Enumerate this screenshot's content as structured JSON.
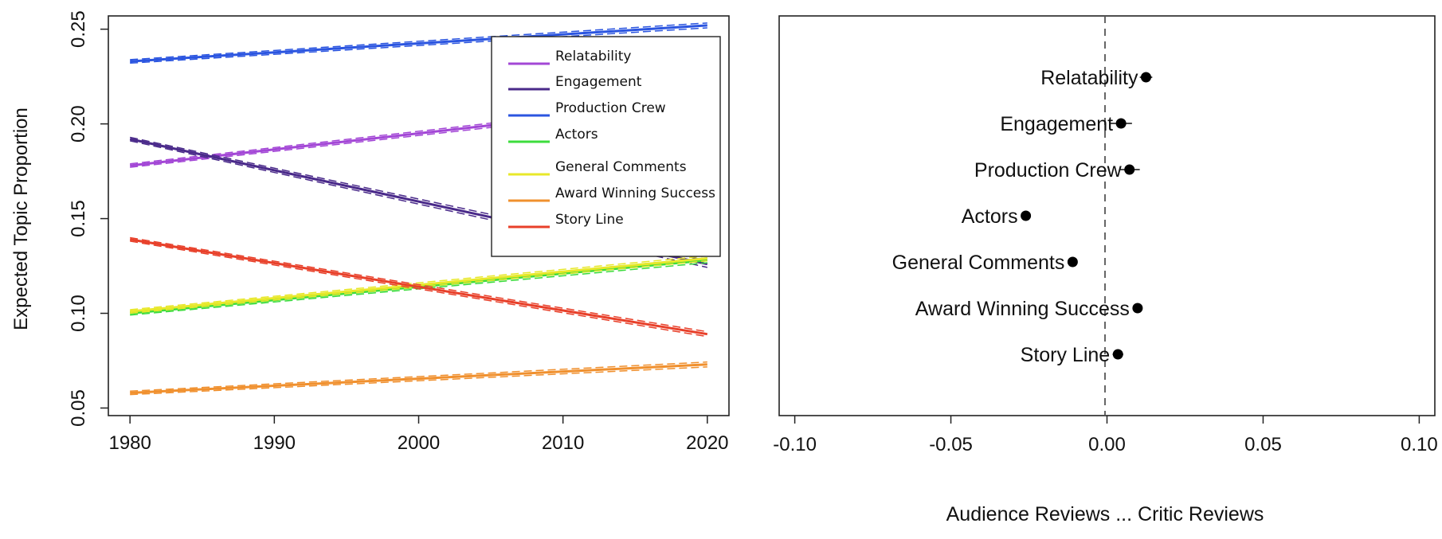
{
  "chart_data": [
    {
      "type": "line",
      "title": "",
      "xlabel": "",
      "ylabel": "Expected Topic Proportion",
      "xlim": [
        1978.5,
        2021.5
      ],
      "ylim": [
        0.046,
        0.257
      ],
      "xticks": [
        "1980",
        "1990",
        "2000",
        "2010",
        "2020"
      ],
      "yticks": [
        "0.05",
        "0.10",
        "0.15",
        "0.20",
        "0.25"
      ],
      "grid": false,
      "legend": "top-right",
      "confidence_bands": "dashed",
      "series": [
        {
          "name": "Relatability",
          "color": "#a347d6",
          "x": [
            1980,
            2020
          ],
          "y": [
            0.178,
            0.212
          ]
        },
        {
          "name": "Engagement",
          "color": "#4a2a8a",
          "x": [
            1980,
            2020
          ],
          "y": [
            0.192,
            0.126
          ]
        },
        {
          "name": "Production Crew",
          "color": "#2b55e0",
          "x": [
            1980,
            2020
          ],
          "y": [
            0.233,
            0.252
          ]
        },
        {
          "name": "Actors",
          "color": "#3ddc3d",
          "x": [
            1980,
            2020
          ],
          "y": [
            0.1,
            0.128
          ]
        },
        {
          "name": "General Comments",
          "color": "#e8e82a",
          "x": [
            1980,
            2020
          ],
          "y": [
            0.101,
            0.129
          ]
        },
        {
          "name": "Award Winning Success",
          "color": "#f0902e",
          "x": [
            1980,
            2020
          ],
          "y": [
            0.058,
            0.073
          ]
        },
        {
          "name": "Story Line",
          "color": "#e8402a",
          "x": [
            1980,
            2020
          ],
          "y": [
            0.139,
            0.089
          ]
        }
      ]
    },
    {
      "type": "scatter",
      "title": "",
      "xlabel": "Audience Reviews ... Critic Reviews",
      "ylabel": "",
      "xlim": [
        -0.105,
        0.105
      ],
      "xticks": [
        "-0.10",
        "-0.05",
        "0.00",
        "0.05",
        "0.10"
      ],
      "reference_line_x": 0,
      "grid": false,
      "labels": [
        "Relatability",
        "Engagement",
        "Production Crew",
        "Actors",
        "General Comments",
        "Award Winning Success",
        "Story Line"
      ],
      "values": [
        0.0125,
        0.0045,
        0.0072,
        -0.026,
        -0.011,
        0.0098,
        0.0035
      ],
      "ci_low": [
        0.0105,
        0.001,
        0.004,
        -0.0275,
        -0.0125,
        0.0088,
        0.0018
      ],
      "ci_high": [
        0.0145,
        0.008,
        0.0105,
        -0.0245,
        -0.0095,
        0.0108,
        0.0052
      ]
    }
  ]
}
